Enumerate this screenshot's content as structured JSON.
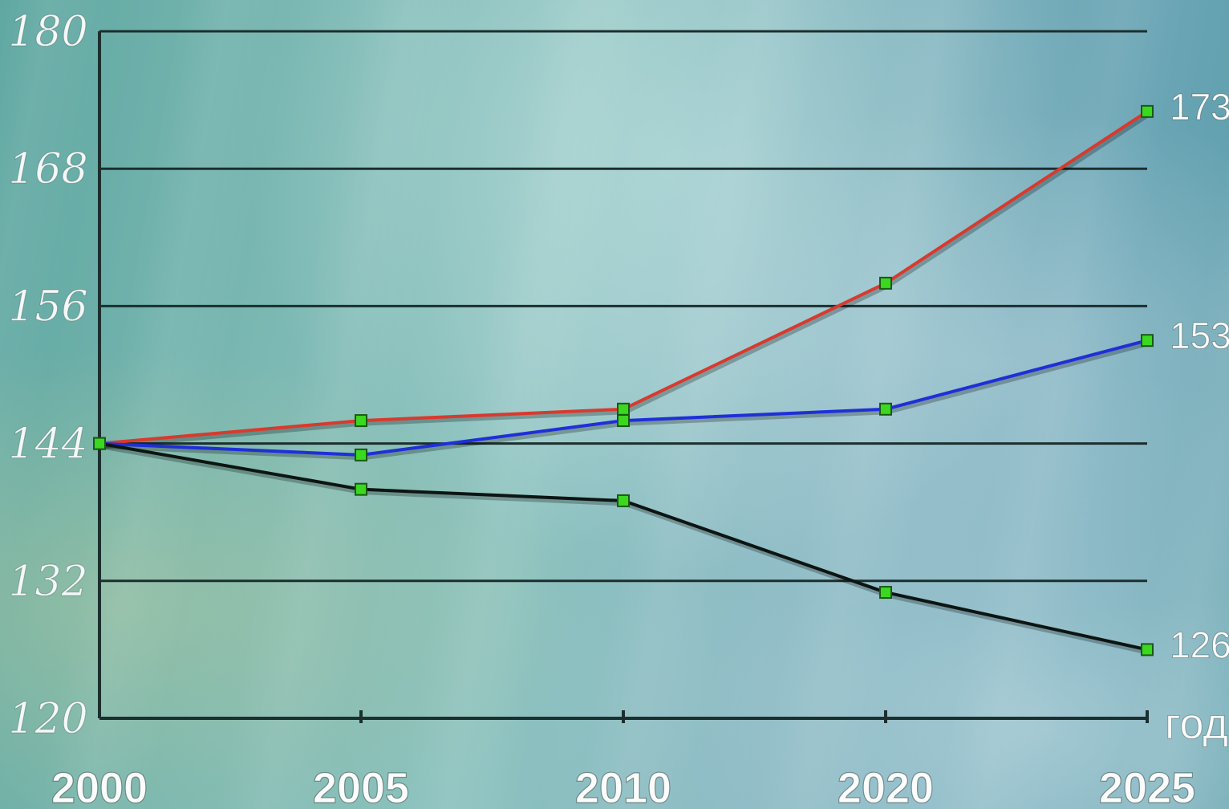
{
  "chart_data": {
    "type": "line",
    "x": [
      "2000",
      "2005",
      "2010",
      "2020",
      "2025"
    ],
    "x_unit_label": "год",
    "ylim": [
      120,
      180
    ],
    "y_ticks": [
      "180",
      "168",
      "156",
      "144",
      "132",
      "120"
    ],
    "grid": true,
    "series": [
      {
        "color": "#d83a2e",
        "values": [
          144,
          146,
          147,
          158,
          173
        ],
        "end_label": "173"
      },
      {
        "color": "#1f2fd8",
        "values": [
          144,
          143,
          146,
          147,
          153
        ],
        "end_label": "153"
      },
      {
        "color": "#0d1512",
        "values": [
          144,
          140,
          139,
          131,
          126
        ],
        "end_label": "126"
      }
    ],
    "marker_color": "#3ad81f"
  }
}
